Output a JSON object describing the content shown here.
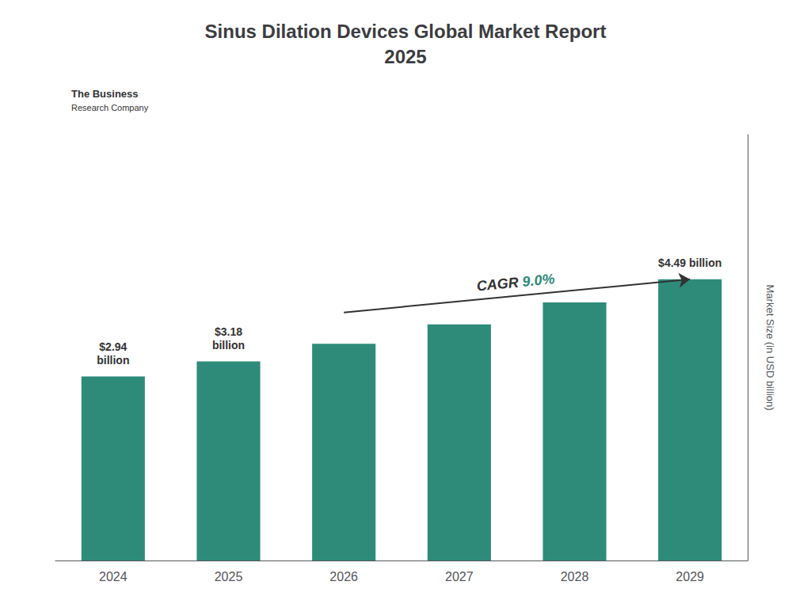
{
  "chart_data": {
    "type": "bar",
    "title": "Sinus Dilation Devices Global Market Report\n2025",
    "categories": [
      "2024",
      "2025",
      "2026",
      "2027",
      "2028",
      "2029"
    ],
    "values": [
      2.94,
      3.18,
      3.46,
      3.77,
      4.12,
      4.49
    ],
    "color": "#2e8b7a",
    "ylabel": "Market Size (in USD billion)",
    "ylim": [
      0,
      6.8
    ],
    "yticks": [],
    "tick_labels": "x",
    "grid": false,
    "annotations": [
      {
        "text": "$2.94\nbillion",
        "category": "2024"
      },
      {
        "text": "$3.18\nbillion",
        "category": "2025"
      },
      {
        "text": "$4.49 billion",
        "category": "2029"
      },
      {
        "text": [
          "CAGR ",
          "9.0%"
        ],
        "arrow": [
          "2026",
          "2029"
        ]
      },
      {
        "text": "The Business"
      },
      {
        "text": "Research Company"
      }
    ]
  }
}
